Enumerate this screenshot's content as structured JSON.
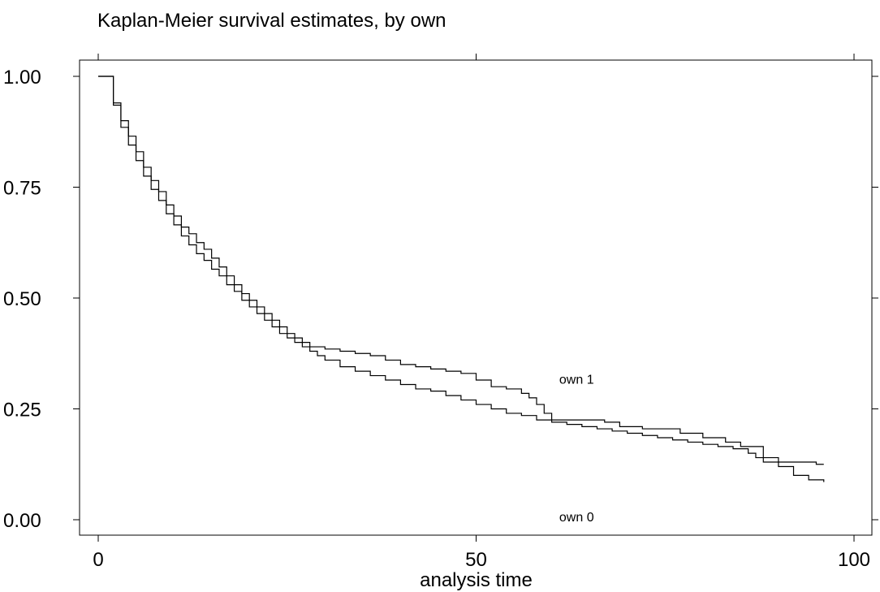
{
  "chart_data": {
    "type": "line",
    "step": true,
    "title": "Kaplan-Meier survival estimates, by own",
    "xlabel": "analysis time",
    "ylabel": "",
    "xlim": [
      0,
      100
    ],
    "ylim": [
      0,
      1
    ],
    "x_ticks": [
      0,
      50,
      100
    ],
    "x_tick_labels": [
      "0",
      "50",
      "100"
    ],
    "y_ticks": [
      0,
      0.25,
      0.5,
      0.75,
      1
    ],
    "y_tick_labels": [
      "0.00",
      "0.25",
      "0.50",
      "0.75",
      "1.00"
    ],
    "grid": false,
    "series": [
      {
        "name": "own 1",
        "label_at": [
          61,
          0.31
        ],
        "points": [
          [
            0,
            1.0
          ],
          [
            2,
            0.94
          ],
          [
            3,
            0.9
          ],
          [
            4,
            0.865
          ],
          [
            5,
            0.83
          ],
          [
            6,
            0.795
          ],
          [
            7,
            0.765
          ],
          [
            8,
            0.74
          ],
          [
            9,
            0.71
          ],
          [
            10,
            0.685
          ],
          [
            11,
            0.66
          ],
          [
            12,
            0.645
          ],
          [
            13,
            0.625
          ],
          [
            14,
            0.61
          ],
          [
            15,
            0.59
          ],
          [
            16,
            0.57
          ],
          [
            17,
            0.55
          ],
          [
            18,
            0.53
          ],
          [
            19,
            0.51
          ],
          [
            20,
            0.495
          ],
          [
            21,
            0.48
          ],
          [
            22,
            0.465
          ],
          [
            23,
            0.45
          ],
          [
            24,
            0.435
          ],
          [
            25,
            0.42
          ],
          [
            26,
            0.41
          ],
          [
            27,
            0.4
          ],
          [
            28,
            0.39
          ],
          [
            30,
            0.385
          ],
          [
            32,
            0.38
          ],
          [
            34,
            0.375
          ],
          [
            36,
            0.37
          ],
          [
            38,
            0.36
          ],
          [
            40,
            0.35
          ],
          [
            42,
            0.345
          ],
          [
            44,
            0.34
          ],
          [
            46,
            0.335
          ],
          [
            48,
            0.33
          ],
          [
            50,
            0.315
          ],
          [
            52,
            0.3
          ],
          [
            54,
            0.295
          ],
          [
            56,
            0.285
          ],
          [
            57,
            0.275
          ],
          [
            58,
            0.26
          ],
          [
            59,
            0.24
          ],
          [
            60,
            0.225
          ],
          [
            63,
            0.225
          ],
          [
            67,
            0.22
          ],
          [
            69,
            0.21
          ],
          [
            72,
            0.205
          ],
          [
            77,
            0.195
          ],
          [
            80,
            0.185
          ],
          [
            83,
            0.175
          ],
          [
            85,
            0.165
          ],
          [
            88,
            0.14
          ],
          [
            90,
            0.13
          ],
          [
            92,
            0.13
          ],
          [
            95,
            0.125
          ],
          [
            96,
            0.125
          ]
        ]
      },
      {
        "name": "own 0",
        "label_at": [
          61,
          0.0
        ],
        "points": [
          [
            0,
            1.0
          ],
          [
            2,
            0.935
          ],
          [
            3,
            0.885
          ],
          [
            4,
            0.845
          ],
          [
            5,
            0.81
          ],
          [
            6,
            0.775
          ],
          [
            7,
            0.745
          ],
          [
            8,
            0.72
          ],
          [
            9,
            0.69
          ],
          [
            10,
            0.665
          ],
          [
            11,
            0.64
          ],
          [
            12,
            0.62
          ],
          [
            13,
            0.6
          ],
          [
            14,
            0.585
          ],
          [
            15,
            0.565
          ],
          [
            16,
            0.55
          ],
          [
            17,
            0.53
          ],
          [
            18,
            0.515
          ],
          [
            19,
            0.495
          ],
          [
            20,
            0.48
          ],
          [
            21,
            0.465
          ],
          [
            22,
            0.45
          ],
          [
            23,
            0.435
          ],
          [
            24,
            0.42
          ],
          [
            25,
            0.41
          ],
          [
            26,
            0.4
          ],
          [
            27,
            0.39
          ],
          [
            28,
            0.38
          ],
          [
            29,
            0.37
          ],
          [
            30,
            0.36
          ],
          [
            32,
            0.345
          ],
          [
            34,
            0.335
          ],
          [
            36,
            0.325
          ],
          [
            38,
            0.315
          ],
          [
            40,
            0.305
          ],
          [
            42,
            0.295
          ],
          [
            44,
            0.29
          ],
          [
            46,
            0.28
          ],
          [
            48,
            0.27
          ],
          [
            50,
            0.26
          ],
          [
            52,
            0.25
          ],
          [
            54,
            0.24
          ],
          [
            56,
            0.235
          ],
          [
            58,
            0.225
          ],
          [
            60,
            0.22
          ],
          [
            62,
            0.215
          ],
          [
            64,
            0.21
          ],
          [
            66,
            0.205
          ],
          [
            68,
            0.2
          ],
          [
            70,
            0.195
          ],
          [
            72,
            0.19
          ],
          [
            74,
            0.185
          ],
          [
            76,
            0.18
          ],
          [
            78,
            0.175
          ],
          [
            80,
            0.17
          ],
          [
            82,
            0.165
          ],
          [
            84,
            0.16
          ],
          [
            86,
            0.15
          ],
          [
            87,
            0.14
          ],
          [
            88,
            0.13
          ],
          [
            90,
            0.12
          ],
          [
            92,
            0.1
          ],
          [
            94,
            0.09
          ],
          [
            96,
            0.085
          ]
        ]
      }
    ]
  }
}
